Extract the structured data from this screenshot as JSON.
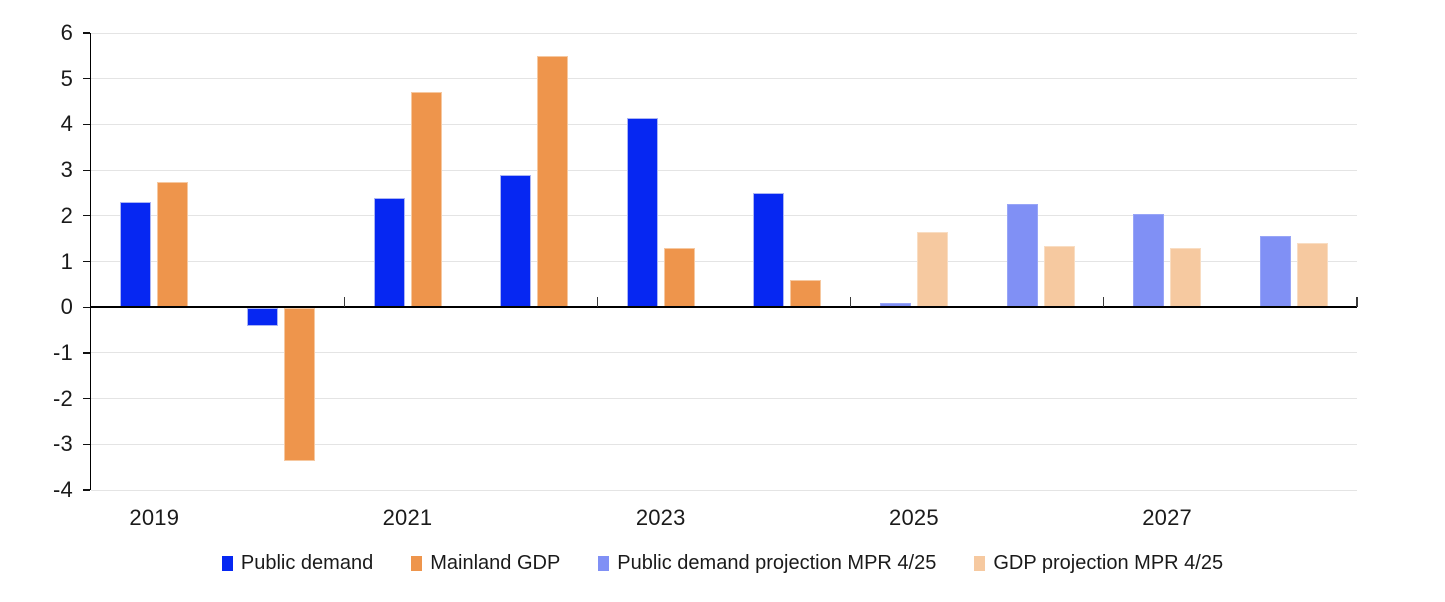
{
  "chart_data": {
    "type": "bar",
    "title": "",
    "xlabel": "",
    "ylabel": "",
    "ylim": [
      -4,
      6
    ],
    "y_ticks": [
      6,
      5,
      4,
      3,
      2,
      1,
      0,
      -1,
      -2,
      -3,
      -4
    ],
    "grid": true,
    "legend_position": "bottom",
    "categories": [
      "2019",
      "2020",
      "2021",
      "2022",
      "2023",
      "2024",
      "2025",
      "2026",
      "2027",
      "2028"
    ],
    "x_tick_labels": [
      {
        "label": "2019",
        "category_index": 0
      },
      {
        "label": "2021",
        "category_index": 2
      },
      {
        "label": "2023",
        "category_index": 4
      },
      {
        "label": "2025",
        "category_index": 6
      },
      {
        "label": "2027",
        "category_index": 8
      }
    ],
    "series": [
      {
        "name": "Public demand",
        "color": "#0627f2",
        "edge_color": "#aab4f4",
        "values": [
          2.3,
          -0.4,
          2.4,
          2.9,
          4.15,
          2.5,
          null,
          null,
          null,
          null
        ]
      },
      {
        "name": "Mainland GDP",
        "color": "#ee954c",
        "edge_color": "#f6c8a0",
        "values": [
          2.75,
          -3.35,
          4.7,
          5.5,
          1.3,
          0.6,
          null,
          null,
          null,
          null
        ]
      },
      {
        "name": "Public demand projection MPR 4/25",
        "color": "#8090f5",
        "edge_color": "#98a5f7",
        "values": [
          null,
          null,
          null,
          null,
          null,
          null,
          0.1,
          2.25,
          2.05,
          1.55
        ]
      },
      {
        "name": "GDP projection MPR 4/25",
        "color": "#f6c9a0",
        "edge_color": "#f9ddc2",
        "values": [
          null,
          null,
          null,
          null,
          null,
          null,
          1.65,
          1.35,
          1.3,
          1.4
        ]
      }
    ],
    "axis_colors": {
      "gridline": "#e4e4e4",
      "axis_line": "#000000",
      "tick": "#3a3a3a",
      "label_text": "#1a1a1a"
    }
  }
}
